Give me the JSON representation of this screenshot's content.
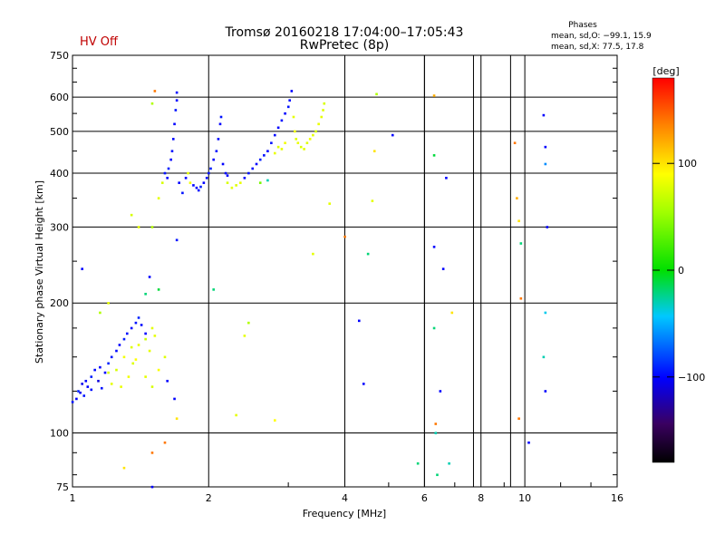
{
  "header": {
    "title_line1": "Tromsø 20160218 17:04:00–17:05:43",
    "title_line2": "RwPretec (8p)",
    "status": "HV Off",
    "status_color": "#c00000",
    "stats_title": "Phases",
    "stats_o": "mean, sd,O: −99.1, 15.9",
    "stats_x": "mean, sd,X:  77.5, 17.8"
  },
  "colorbar": {
    "unit_label": "[deg]",
    "ticks": [
      "100",
      "0",
      "−100"
    ],
    "tick_values": [
      100,
      0,
      -100
    ],
    "range": [
      -180,
      180
    ]
  },
  "chart_data": {
    "type": "scatter",
    "title": "Tromsø 20160218 17:04:00–17:05:43",
    "subtitle": "RwPretec (8p)",
    "xlabel": "Frequency [MHz]",
    "ylabel": "Stationary phase Virtual Height [km]",
    "xscale": "log",
    "yscale": "log",
    "xlim": [
      1,
      16
    ],
    "ylim": [
      75,
      750
    ],
    "grid": true,
    "x_ticks": [
      "1",
      "2",
      "4",
      "6",
      "8",
      "10",
      "16"
    ],
    "x_tick_values": [
      1,
      2,
      4,
      6,
      8,
      10,
      16
    ],
    "y_ticks": [
      "750",
      "600",
      "500",
      "400",
      "300",
      "200",
      "100",
      "75"
    ],
    "y_tick_values": [
      750,
      600,
      500,
      400,
      300,
      200,
      100,
      75
    ],
    "points": [
      [
        1.0,
        118,
        -95
      ],
      [
        1.02,
        120,
        -100
      ],
      [
        1.03,
        125,
        -90
      ],
      [
        1.05,
        130,
        -105
      ],
      [
        1.06,
        122,
        -95
      ],
      [
        1.08,
        128,
        -100
      ],
      [
        1.1,
        135,
        -92
      ],
      [
        1.12,
        140,
        -98
      ],
      [
        1.14,
        132,
        -110
      ],
      [
        1.16,
        127,
        -96
      ],
      [
        1.18,
        138,
        -100
      ],
      [
        1.2,
        145,
        -90
      ],
      [
        1.22,
        150,
        -95
      ],
      [
        1.25,
        155,
        -98
      ],
      [
        1.27,
        160,
        -100
      ],
      [
        1.3,
        165,
        -92
      ],
      [
        1.32,
        170,
        -96
      ],
      [
        1.35,
        175,
        -100
      ],
      [
        1.38,
        180,
        -95
      ],
      [
        1.4,
        185,
        -90
      ],
      [
        1.42,
        178,
        -98
      ],
      [
        1.45,
        170,
        -100
      ],
      [
        1.22,
        130,
        80
      ],
      [
        1.25,
        140,
        75
      ],
      [
        1.3,
        150,
        85
      ],
      [
        1.35,
        158,
        78
      ],
      [
        1.38,
        148,
        90
      ],
      [
        1.4,
        160,
        82
      ],
      [
        1.45,
        165,
        70
      ],
      [
        1.48,
        155,
        80
      ],
      [
        1.33,
        135,
        85
      ],
      [
        1.36,
        145,
        77
      ],
      [
        1.28,
        128,
        82
      ],
      [
        1.5,
        175,
        79
      ],
      [
        1.52,
        168,
        80
      ],
      [
        1.2,
        138,
        76
      ],
      [
        1.15,
        142,
        -100
      ],
      [
        1.1,
        126,
        -97
      ],
      [
        1.07,
        132,
        -99
      ],
      [
        1.04,
        124,
        -103
      ],
      [
        1.45,
        135,
        80
      ],
      [
        1.5,
        128,
        75
      ],
      [
        1.55,
        140,
        88
      ],
      [
        1.6,
        150,
        78
      ],
      [
        1.48,
        230,
        -100
      ],
      [
        1.5,
        300,
        60
      ],
      [
        1.55,
        350,
        80
      ],
      [
        1.58,
        380,
        75
      ],
      [
        1.6,
        400,
        -95
      ],
      [
        1.62,
        390,
        -100
      ],
      [
        1.63,
        410,
        -92
      ],
      [
        1.65,
        430,
        -100
      ],
      [
        1.66,
        450,
        -96
      ],
      [
        1.67,
        480,
        -98
      ],
      [
        1.68,
        520,
        -100
      ],
      [
        1.69,
        560,
        -95
      ],
      [
        1.7,
        590,
        -100
      ],
      [
        1.7,
        615,
        -98
      ],
      [
        1.72,
        380,
        -100
      ],
      [
        1.75,
        360,
        -95
      ],
      [
        1.78,
        390,
        -100
      ],
      [
        1.8,
        400,
        80
      ],
      [
        1.82,
        380,
        85
      ],
      [
        1.85,
        375,
        -98
      ],
      [
        1.88,
        370,
        -100
      ],
      [
        1.9,
        365,
        -96
      ],
      [
        1.92,
        372,
        -92
      ],
      [
        1.95,
        380,
        -100
      ],
      [
        1.98,
        390,
        -98
      ],
      [
        2.0,
        400,
        -95
      ],
      [
        2.02,
        410,
        -92
      ],
      [
        2.05,
        430,
        -100
      ],
      [
        2.08,
        450,
        -96
      ],
      [
        2.1,
        480,
        -98
      ],
      [
        2.12,
        520,
        -100
      ],
      [
        2.13,
        540,
        -95
      ],
      [
        2.15,
        420,
        -100
      ],
      [
        2.18,
        400,
        -98
      ],
      [
        2.2,
        380,
        75
      ],
      [
        2.25,
        370,
        80
      ],
      [
        2.3,
        375,
        78
      ],
      [
        2.35,
        380,
        82
      ],
      [
        2.4,
        390,
        -100
      ],
      [
        2.45,
        400,
        -95
      ],
      [
        2.5,
        410,
        -98
      ],
      [
        2.55,
        420,
        -100
      ],
      [
        2.6,
        430,
        -92
      ],
      [
        2.65,
        440,
        -96
      ],
      [
        2.7,
        450,
        -100
      ],
      [
        2.75,
        470,
        -95
      ],
      [
        2.8,
        490,
        -98
      ],
      [
        2.85,
        510,
        -100
      ],
      [
        2.9,
        530,
        -96
      ],
      [
        2.95,
        550,
        -100
      ],
      [
        3.0,
        570,
        -95
      ],
      [
        3.02,
        590,
        -98
      ],
      [
        3.05,
        620,
        -100
      ],
      [
        3.08,
        540,
        80
      ],
      [
        3.1,
        500,
        85
      ],
      [
        3.12,
        480,
        78
      ],
      [
        3.15,
        470,
        82
      ],
      [
        3.2,
        460,
        76
      ],
      [
        3.25,
        455,
        80
      ],
      [
        3.3,
        470,
        78
      ],
      [
        3.35,
        480,
        85
      ],
      [
        3.4,
        490,
        80
      ],
      [
        3.45,
        500,
        76
      ],
      [
        3.5,
        520,
        82
      ],
      [
        3.55,
        540,
        80
      ],
      [
        3.58,
        560,
        78
      ],
      [
        3.6,
        580,
        75
      ],
      [
        2.95,
        470,
        85
      ],
      [
        2.9,
        455,
        80
      ],
      [
        2.85,
        460,
        78
      ],
      [
        2.8,
        445,
        82
      ],
      [
        2.2,
        395,
        -100
      ],
      [
        2.6,
        380,
        40
      ],
      [
        2.7,
        385,
        -30
      ],
      [
        1.35,
        320,
        75
      ],
      [
        1.4,
        300,
        80
      ],
      [
        1.5,
        580,
        60
      ],
      [
        1.52,
        620,
        140
      ],
      [
        1.7,
        280,
        -95
      ],
      [
        2.05,
        215,
        -20
      ],
      [
        2.4,
        168,
        80
      ],
      [
        2.45,
        180,
        60
      ],
      [
        2.3,
        110,
        80
      ],
      [
        2.8,
        107,
        90
      ],
      [
        3.4,
        260,
        80
      ],
      [
        3.7,
        340,
        80
      ],
      [
        4.0,
        285,
        140
      ],
      [
        4.3,
        182,
        -100
      ],
      [
        4.4,
        130,
        -100
      ],
      [
        4.5,
        260,
        -20
      ],
      [
        4.6,
        345,
        80
      ],
      [
        4.65,
        450,
        100
      ],
      [
        4.7,
        610,
        60
      ],
      [
        5.1,
        490,
        -100
      ],
      [
        5.8,
        85,
        -20
      ],
      [
        6.3,
        605,
        120
      ],
      [
        6.3,
        440,
        -10
      ],
      [
        6.3,
        270,
        -100
      ],
      [
        6.3,
        175,
        -20
      ],
      [
        6.35,
        105,
        140
      ],
      [
        6.35,
        100,
        -30
      ],
      [
        6.4,
        80,
        -20
      ],
      [
        6.5,
        125,
        -100
      ],
      [
        6.6,
        240,
        -100
      ],
      [
        6.7,
        390,
        -100
      ],
      [
        6.9,
        190,
        100
      ],
      [
        6.8,
        85,
        -30
      ],
      [
        9.5,
        470,
        140
      ],
      [
        9.6,
        350,
        120
      ],
      [
        9.7,
        310,
        100
      ],
      [
        9.8,
        275,
        -20
      ],
      [
        9.8,
        205,
        140
      ],
      [
        9.7,
        108,
        140
      ],
      [
        10.2,
        95,
        -100
      ],
      [
        11.0,
        545,
        -100
      ],
      [
        11.1,
        460,
        -100
      ],
      [
        11.1,
        420,
        -60
      ],
      [
        11.2,
        300,
        -100
      ],
      [
        11.1,
        190,
        -40
      ],
      [
        11.0,
        150,
        -30
      ],
      [
        11.1,
        125,
        -100
      ],
      [
        1.3,
        83,
        100
      ],
      [
        1.5,
        90,
        140
      ],
      [
        1.5,
        75,
        -100
      ],
      [
        1.6,
        95,
        140
      ],
      [
        1.7,
        108,
        100
      ],
      [
        1.68,
        120,
        -100
      ],
      [
        1.62,
        132,
        -100
      ],
      [
        1.55,
        215,
        -10
      ],
      [
        1.45,
        210,
        -20
      ],
      [
        1.2,
        200,
        80
      ],
      [
        1.15,
        190,
        60
      ],
      [
        1.05,
        240,
        -100
      ]
    ]
  }
}
